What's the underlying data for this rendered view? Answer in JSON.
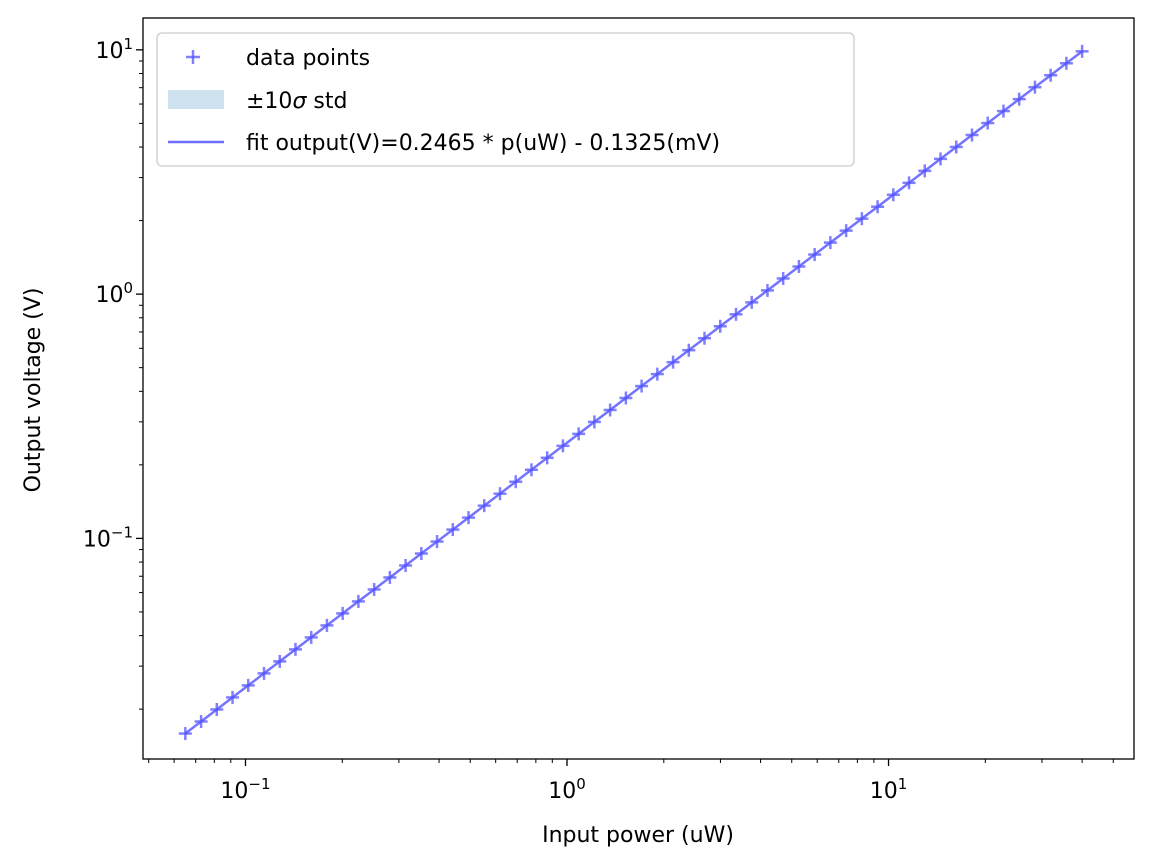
{
  "chart_data": {
    "type": "scatter",
    "title": "",
    "xlabel": "Input power (uW)",
    "ylabel": "Output voltage (V)",
    "xscale": "log",
    "yscale": "log",
    "xlim": [
      0.048,
      58
    ],
    "ylim": [
      0.0125,
      13.5
    ],
    "xticks": [
      {
        "value": 0.1,
        "base": "10",
        "exp": "−1"
      },
      {
        "value": 1,
        "base": "10",
        "exp": "0"
      },
      {
        "value": 10,
        "base": "10",
        "exp": "1"
      }
    ],
    "yticks": [
      {
        "value": 0.1,
        "base": "10",
        "exp": "−1"
      },
      {
        "value": 1,
        "base": "10",
        "exp": "0"
      },
      {
        "value": 10,
        "base": "10",
        "exp": "1"
      }
    ],
    "grid": false,
    "legend_position": "upper-left",
    "legend": {
      "points": "data points",
      "band_prefix": "±10",
      "band_sigma": "σ",
      "band_suffix": " std",
      "fit": "fit output(V)=0.2465 * p(uW) - 0.1325(mV)"
    },
    "fit": {
      "slope": 0.2465,
      "intercept_mV": -0.1325
    },
    "x_range": [
      0.065,
      40.0
    ],
    "n_points": 58,
    "series": [
      {
        "name": "data points",
        "marker": "+",
        "color": "#5555ff"
      },
      {
        "name": "fit output(V)=0.2465 * p(uW) - 0.1325(mV)",
        "style": "line",
        "color": "#6d6dff"
      },
      {
        "name": "±10σ std",
        "style": "band",
        "color": "#c6dcec"
      }
    ]
  }
}
